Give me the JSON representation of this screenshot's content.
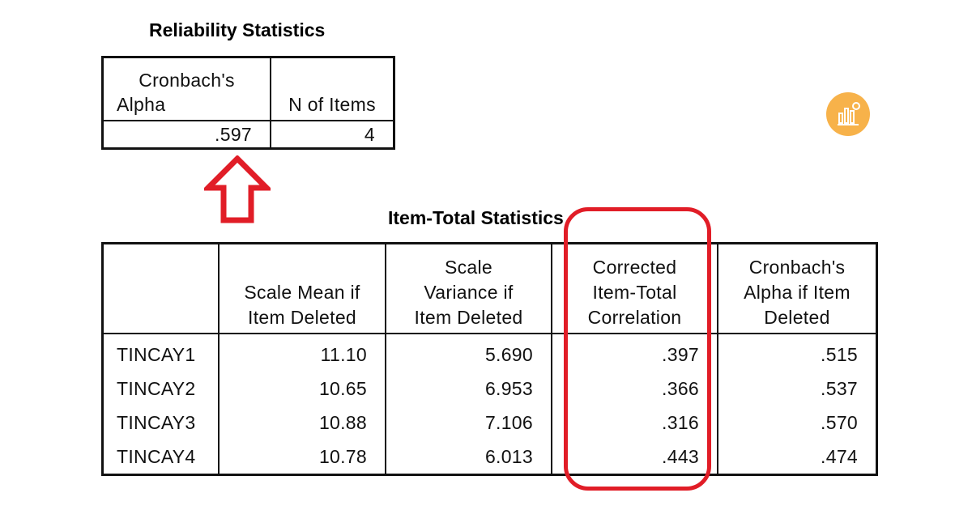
{
  "reliability": {
    "title": "Reliability Statistics",
    "headers": [
      [
        "Cronbach's",
        "Alpha"
      ],
      [
        "N of Items"
      ]
    ],
    "values": [
      ".597",
      "4"
    ]
  },
  "item_total": {
    "title": "Item-Total Statistics",
    "headers": [
      [],
      [
        "Scale Mean if",
        "Item Deleted"
      ],
      [
        "Scale",
        "Variance if",
        "Item Deleted"
      ],
      [
        "Corrected",
        "Item-Total",
        "Correlation"
      ],
      [
        "Cronbach's",
        "Alpha if Item",
        "Deleted"
      ]
    ],
    "rows": [
      {
        "label": "TINCAY1",
        "values": [
          "11.10",
          "5.690",
          ".397",
          ".515"
        ]
      },
      {
        "label": "TINCAY2",
        "values": [
          "10.65",
          "6.953",
          ".366",
          ".537"
        ]
      },
      {
        "label": "TINCAY3",
        "values": [
          "10.88",
          "7.106",
          ".316",
          ".570"
        ]
      },
      {
        "label": "TINCAY4",
        "values": [
          "10.78",
          "6.013",
          ".443",
          ".474"
        ]
      }
    ]
  },
  "annotations": {
    "color": "#e11d27",
    "arrow_icon": "up-arrow-outline-icon",
    "highlight": "oval-around-corrected-item-total-correlation"
  },
  "logo": {
    "icon": "chart-analytics-logo-icon",
    "color": "#f7b24a"
  }
}
